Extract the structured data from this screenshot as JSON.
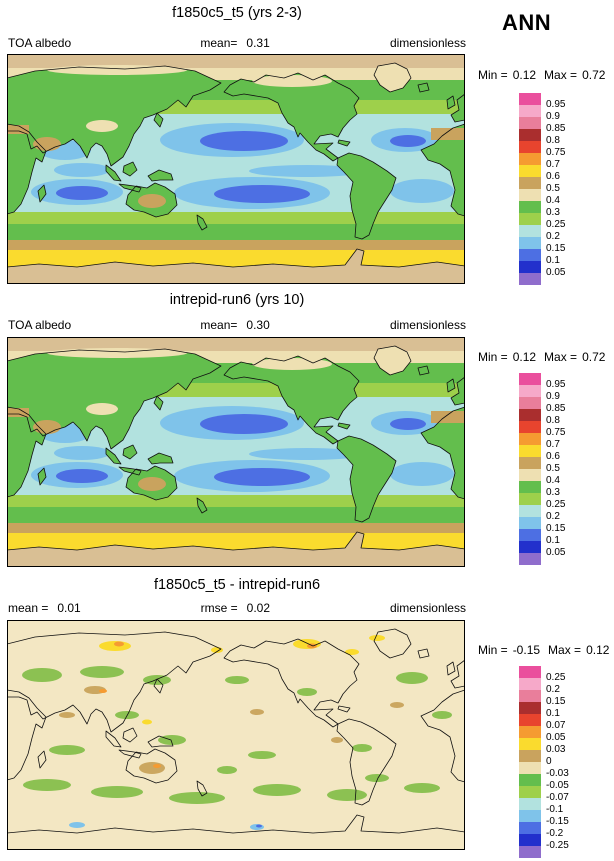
{
  "season_label": "ANN",
  "panels": [
    {
      "title": "f1850c5_t5 (yrs 2-3)",
      "header": {
        "left_label": "TOA albedo",
        "center_label": "mean=",
        "center_value": "0.31",
        "right_label": "dimensionless"
      },
      "minmax": {
        "min_label": "Min =",
        "min_value": "0.12",
        "max_label": "Max =",
        "max_value": "0.72"
      },
      "colorbar": {
        "tick_labels": [
          "0.95",
          "0.9",
          "0.85",
          "0.8",
          "0.75",
          "0.7",
          "0.6",
          "0.5",
          "0.4",
          "0.3",
          "0.25",
          "0.2",
          "0.15",
          "0.1",
          "0.05"
        ],
        "box_colors": [
          "#ea4f9d",
          "#f6a9c9",
          "#e97e9b",
          "#aa2e2e",
          "#e8442e",
          "#f59b31",
          "#fadb2e",
          "#c9a35e",
          "#eee0b2",
          "#63be4d",
          "#9ed04b",
          "#b2e2df",
          "#7fc3ea",
          "#4d6fe3",
          "#2230cc",
          "#8f6dcc"
        ]
      }
    },
    {
      "title": "intrepid-run6 (yrs 10)",
      "header": {
        "left_label": "TOA albedo",
        "center_label": "mean=",
        "center_value": "0.30",
        "right_label": "dimensionless"
      },
      "minmax": {
        "min_label": "Min =",
        "min_value": "0.12",
        "max_label": "Max =",
        "max_value": "0.72"
      },
      "colorbar": {
        "tick_labels": [
          "0.95",
          "0.9",
          "0.85",
          "0.8",
          "0.75",
          "0.7",
          "0.6",
          "0.5",
          "0.4",
          "0.3",
          "0.25",
          "0.2",
          "0.15",
          "0.1",
          "0.05"
        ],
        "box_colors": [
          "#ea4f9d",
          "#f6a9c9",
          "#e97e9b",
          "#aa2e2e",
          "#e8442e",
          "#f59b31",
          "#fadb2e",
          "#c9a35e",
          "#eee0b2",
          "#63be4d",
          "#9ed04b",
          "#b2e2df",
          "#7fc3ea",
          "#4d6fe3",
          "#2230cc",
          "#8f6dcc"
        ]
      }
    },
    {
      "title": "f1850c5_t5 - intrepid-run6",
      "header": {
        "left_label": "mean =",
        "left_value": "0.01",
        "center_label": "rmse =",
        "center_value": "0.02",
        "right_label": "dimensionless"
      },
      "minmax": {
        "min_label": "Min =",
        "min_value": "-0.15",
        "max_label": "Max =",
        "max_value": "0.12"
      },
      "colorbar": {
        "tick_labels": [
          "0.25",
          "0.2",
          "0.15",
          "0.1",
          "0.07",
          "0.05",
          "0.03",
          "0",
          "-0.03",
          "-0.05",
          "-0.07",
          "-0.1",
          "-0.15",
          "-0.2",
          "-0.25"
        ],
        "box_colors": [
          "#ea4f9d",
          "#f6a9c9",
          "#e97e9b",
          "#aa2e2e",
          "#e8442e",
          "#f59b31",
          "#fadb2e",
          "#c9a35e",
          "#eee0b2",
          "#63be4d",
          "#9ed04b",
          "#b2e2df",
          "#7fc3ea",
          "#4d6fe3",
          "#2230cc",
          "#8f6dcc"
        ]
      }
    }
  ],
  "chart_data": [
    {
      "type": "heatmap",
      "subtype": "filled-contour-global-map",
      "title": "f1850c5_t5 (yrs 2-3)",
      "variable": "TOA albedo",
      "units": "dimensionless",
      "season": "ANN",
      "stats": {
        "mean": 0.31,
        "min": 0.12,
        "max": 0.72
      },
      "contour_levels": [
        0.05,
        0.1,
        0.15,
        0.2,
        0.25,
        0.3,
        0.4,
        0.5,
        0.6,
        0.7,
        0.75,
        0.8,
        0.85,
        0.9,
        0.95
      ],
      "palette_high_to_low": [
        "#ea4f9d",
        "#f6a9c9",
        "#e97e9b",
        "#aa2e2e",
        "#e8442e",
        "#f59b31",
        "#fadb2e",
        "#c9a35e",
        "#eee0b2",
        "#63be4d",
        "#9ed04b",
        "#b2e2df",
        "#7fc3ea",
        "#4d6fe3",
        "#2230cc",
        "#8f6dcc"
      ],
      "projection": "cylindrical equidistant, Pacific-centered",
      "legend_position": "right",
      "pattern_summary": "High albedo (tan/beige/yellow) over Arctic, Greenland and Antarctic sea-ice ring; green mid-latitude storm tracks and most land; low albedo (light blue to dark blue) over subtropical ocean gyres"
    },
    {
      "type": "heatmap",
      "subtype": "filled-contour-global-map",
      "title": "intrepid-run6 (yrs 10)",
      "variable": "TOA albedo",
      "units": "dimensionless",
      "season": "ANN",
      "stats": {
        "mean": 0.3,
        "min": 0.12,
        "max": 0.72
      },
      "contour_levels": [
        0.05,
        0.1,
        0.15,
        0.2,
        0.25,
        0.3,
        0.4,
        0.5,
        0.6,
        0.7,
        0.75,
        0.8,
        0.85,
        0.9,
        0.95
      ],
      "palette_high_to_low": [
        "#ea4f9d",
        "#f6a9c9",
        "#e97e9b",
        "#aa2e2e",
        "#e8442e",
        "#f59b31",
        "#fadb2e",
        "#c9a35e",
        "#eee0b2",
        "#63be4d",
        "#9ed04b",
        "#b2e2df",
        "#7fc3ea",
        "#4d6fe3",
        "#2230cc",
        "#8f6dcc"
      ],
      "projection": "cylindrical equidistant, Pacific-centered",
      "legend_position": "right",
      "pattern_summary": "Nearly identical spatial pattern to f1850c5_t5 panel"
    },
    {
      "type": "heatmap",
      "subtype": "difference-map",
      "title": "f1850c5_t5 - intrepid-run6",
      "variable": "TOA albedo difference",
      "units": "dimensionless",
      "season": "ANN",
      "stats": {
        "mean": 0.01,
        "rmse": 0.02,
        "min": -0.15,
        "max": 0.12
      },
      "contour_levels": [
        -0.25,
        -0.2,
        -0.15,
        -0.1,
        -0.07,
        -0.05,
        -0.03,
        0,
        0.03,
        0.05,
        0.07,
        0.1,
        0.15,
        0.2,
        0.25
      ],
      "palette_high_to_low": [
        "#ea4f9d",
        "#f6a9c9",
        "#e97e9b",
        "#aa2e2e",
        "#e8442e",
        "#f59b31",
        "#fadb2e",
        "#c9a35e",
        "#eee0b2",
        "#63be4d",
        "#9ed04b",
        "#b2e2df",
        "#7fc3ea",
        "#4d6fe3",
        "#2230cc",
        "#8f6dcc"
      ],
      "projection": "cylindrical equidistant, Pacific-centered",
      "legend_position": "right",
      "pattern_summary": "Mostly near-zero (beige) everywhere; scattered small negative (green) patches in mid-latitudes and Southern Ocean; positive yellow/orange spots over Arctic Siberia and Arctic Canada; tan patches over Australia and central Asia"
    }
  ]
}
